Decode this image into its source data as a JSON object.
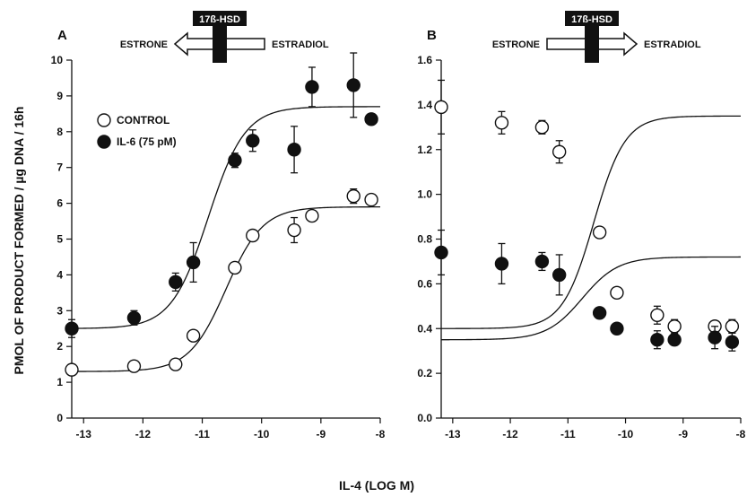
{
  "figure": {
    "ylabel": "PMOL OF PRODUCT FORMED / µg DNA / 16h",
    "xlabel": "IL-4 (LOG M)"
  },
  "colors": {
    "ink": "#111111",
    "open_fill": "#ffffff",
    "closed_fill": "#111111"
  },
  "legend": {
    "entries": [
      {
        "label": "CONTROL",
        "marker": "open-circle"
      },
      {
        "label": "IL-6 (75 pM)",
        "marker": "filled-circle"
      }
    ]
  },
  "chart_data": [
    {
      "type": "scatter",
      "panel_label": "A",
      "enzyme": "17ß-HSD",
      "reaction_left": "ESTRONE",
      "reaction_right": "ESTRADIOL",
      "arrow_direction": "left",
      "xlim": [
        -13.2,
        -8
      ],
      "ylim": [
        0,
        10
      ],
      "x_ticks": [
        -13,
        -12,
        -11,
        -10,
        -9,
        -8
      ],
      "y_ticks": [
        0,
        1,
        2,
        3,
        4,
        5,
        6,
        7,
        8,
        9,
        10
      ],
      "x_tick_labels": [
        "-13",
        "-12",
        "-11",
        "-10",
        "-9",
        "-8"
      ],
      "y_tick_labels": [
        "0",
        "1",
        "2",
        "3",
        "4",
        "5",
        "6",
        "7",
        "8",
        "9",
        "10"
      ],
      "series": [
        {
          "name": "CONTROL",
          "marker": "open-circle",
          "x": [
            -13.2,
            -12.15,
            -11.45,
            -11.15,
            -10.45,
            -10.15,
            -9.45,
            -9.15,
            -8.45,
            -8.15
          ],
          "y": [
            1.35,
            1.45,
            1.5,
            2.3,
            4.2,
            5.1,
            5.25,
            5.65,
            6.2,
            6.1
          ],
          "err": [
            0.1,
            0.05,
            0.05,
            0.1,
            0.1,
            0.1,
            0.35,
            0.1,
            0.2,
            0.1
          ],
          "fit": {
            "bottom": 1.3,
            "top": 5.9,
            "ec50_log": -10.6,
            "hill": 1.4
          }
        },
        {
          "name": "IL-6 (75 pM)",
          "marker": "filled-circle",
          "x": [
            -13.2,
            -12.15,
            -11.45,
            -11.15,
            -10.45,
            -10.15,
            -9.45,
            -9.15,
            -8.45,
            -8.15
          ],
          "y": [
            2.5,
            2.8,
            3.8,
            4.35,
            7.2,
            7.75,
            7.5,
            9.25,
            9.3,
            8.35
          ],
          "err": [
            0.25,
            0.2,
            0.25,
            0.55,
            0.2,
            0.3,
            0.65,
            0.55,
            0.9,
            0.1
          ],
          "fit": {
            "bottom": 2.5,
            "top": 8.7,
            "ec50_log": -10.9,
            "hill": 1.4
          }
        }
      ]
    },
    {
      "type": "scatter",
      "panel_label": "B",
      "enzyme": "17ß-HSD",
      "reaction_left": "ESTRONE",
      "reaction_right": "ESTRADIOL",
      "arrow_direction": "right",
      "xlim": [
        -13.2,
        -8
      ],
      "ylim": [
        0,
        1.6
      ],
      "x_ticks": [
        -13,
        -12,
        -11,
        -10,
        -9,
        -8
      ],
      "y_ticks": [
        0,
        0.2,
        0.4,
        0.6,
        0.8,
        1.0,
        1.2,
        1.4,
        1.6
      ],
      "x_tick_labels": [
        "-13",
        "-12",
        "-11",
        "-10",
        "-9",
        "-8"
      ],
      "y_tick_labels": [
        "0.0",
        "0.2",
        "0.4",
        "0.6",
        "0.8",
        "1.0",
        "1.2",
        "1.4",
        "1.6"
      ],
      "series": [
        {
          "name": "CONTROL",
          "marker": "open-circle",
          "x": [
            -13.2,
            -12.15,
            -11.45,
            -11.15,
            -10.45,
            -10.15,
            -9.45,
            -9.15,
            -8.45,
            -8.15
          ],
          "y": [
            1.39,
            1.32,
            1.3,
            1.19,
            0.83,
            0.56,
            0.46,
            0.41,
            0.41,
            0.41
          ],
          "err": [
            0.12,
            0.05,
            0.03,
            0.05,
            0.02,
            0.02,
            0.04,
            0.03,
            0.02,
            0.03
          ],
          "fit": {
            "bottom": 0.4,
            "top": 1.35,
            "ec50_log": -10.55,
            "hill": 1.6
          }
        },
        {
          "name": "IL-6 (75 pM)",
          "marker": "filled-circle",
          "x": [
            -13.2,
            -12.15,
            -11.45,
            -11.15,
            -10.45,
            -10.15,
            -9.45,
            -9.15,
            -8.45,
            -8.15
          ],
          "y": [
            0.74,
            0.69,
            0.7,
            0.64,
            0.47,
            0.4,
            0.35,
            0.35,
            0.36,
            0.34
          ],
          "err": [
            0.1,
            0.09,
            0.04,
            0.09,
            0.02,
            0.02,
            0.04,
            0.02,
            0.05,
            0.04
          ],
          "fit": {
            "bottom": 0.35,
            "top": 0.72,
            "ec50_log": -10.75,
            "hill": 1.4
          }
        }
      ]
    }
  ]
}
